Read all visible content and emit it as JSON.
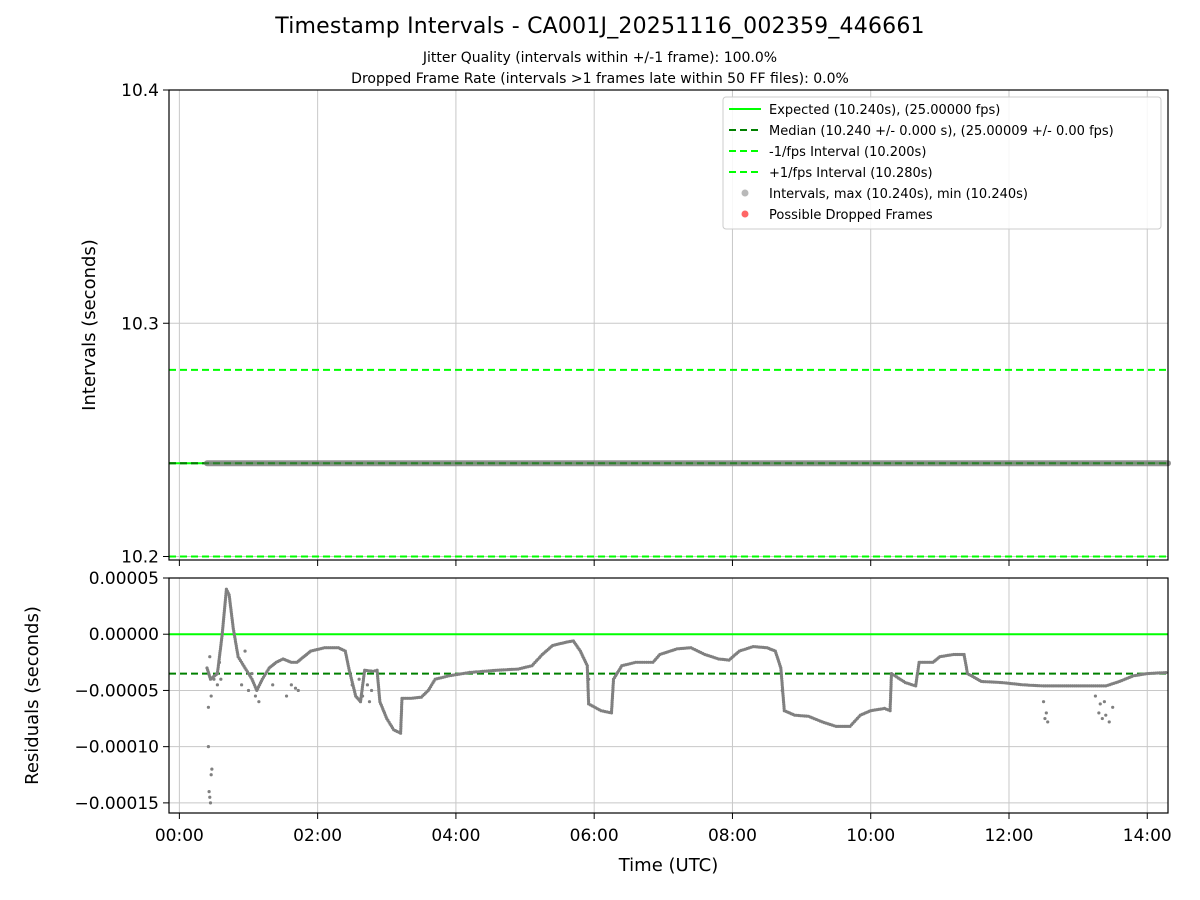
{
  "title": "Timestamp Intervals - CA001J_20251116_002359_446661",
  "subtitle_jitter": "Jitter Quality (intervals within +/-1 frame): 100.0%",
  "subtitle_dropped": "Dropped Frame Rate (intervals >1 frames late within 50 FF files): 0.0%",
  "colors": {
    "expected": "#00ff00",
    "median": "#008000",
    "fps_bounds": "#00ff00",
    "points": "#808080",
    "dropped": "#ff0000",
    "grid": "#c8c8c8"
  },
  "chart_data": [
    {
      "type": "scatter",
      "panel": "intervals",
      "ylabel": "Intervals (seconds)",
      "xlim_hours": [
        -0.15,
        14.3
      ],
      "ylim": [
        10.1985,
        10.4
      ],
      "yticks": [
        10.2,
        10.3,
        10.4
      ],
      "ytick_labels": [
        "10.2",
        "10.3",
        "10.4"
      ],
      "grid": true,
      "legend_position": "top-right",
      "lines": [
        {
          "name": "Expected (10.240s), (25.00000 fps)",
          "y": 10.24,
          "style": "solid"
        },
        {
          "name": "Median (10.240 +/- 0.000 s), (25.00009 +/- 0.00 fps)",
          "y": 10.24,
          "style": "dashed"
        },
        {
          "name": "-1/fps Interval (10.200s)",
          "y": 10.2,
          "style": "dashed"
        },
        {
          "name": "+1/fps Interval (10.280s)",
          "y": 10.28,
          "style": "dashed"
        }
      ],
      "legend_points": [
        {
          "name": "Intervals, max (10.240s), min (10.240s)"
        },
        {
          "name": "Possible Dropped Frames"
        }
      ],
      "interval_series": {
        "x_start_hours": 0.4,
        "x_end_hours": 14.3,
        "y": 10.24
      },
      "dropped_frames": []
    },
    {
      "type": "scatter",
      "panel": "residuals",
      "ylabel": "Residuals (seconds)",
      "xlabel": "Time (UTC)",
      "xlim_hours": [
        -0.15,
        14.3
      ],
      "ylim": [
        -0.000159,
        5e-05
      ],
      "yticks": [
        5e-05,
        0.0,
        -5e-05,
        -0.0001,
        -0.00015
      ],
      "ytick_labels": [
        "0.00005",
        "0.00000",
        "−0.00005",
        "−0.00010",
        "−0.00015"
      ],
      "xticks_hours": [
        0,
        2,
        4,
        6,
        8,
        10,
        12,
        14
      ],
      "xtick_labels": [
        "00:00",
        "02:00",
        "04:00",
        "06:00",
        "08:00",
        "10:00",
        "12:00",
        "14:00"
      ],
      "grid": true,
      "lines": [
        {
          "name": "Expected residual",
          "y": 0.0,
          "style": "solid"
        },
        {
          "name": "Median residual",
          "y": -3.5e-05,
          "style": "dashed"
        }
      ],
      "residual_trend": [
        [
          0.4,
          -3e-05
        ],
        [
          0.45,
          -4e-05
        ],
        [
          0.55,
          -3.5e-05
        ],
        [
          0.62,
          0.0
        ],
        [
          0.68,
          4e-05
        ],
        [
          0.72,
          3.5e-05
        ],
        [
          0.78,
          5e-06
        ],
        [
          0.85,
          -2e-05
        ],
        [
          0.95,
          -3e-05
        ],
        [
          1.05,
          -4e-05
        ],
        [
          1.12,
          -5e-05
        ],
        [
          1.2,
          -4e-05
        ],
        [
          1.3,
          -3e-05
        ],
        [
          1.4,
          -2.5e-05
        ],
        [
          1.5,
          -2.2e-05
        ],
        [
          1.62,
          -2.5e-05
        ],
        [
          1.7,
          -2.5e-05
        ],
        [
          1.8,
          -2e-05
        ],
        [
          1.9,
          -1.5e-05
        ],
        [
          2.1,
          -1.2e-05
        ],
        [
          2.3,
          -1.2e-05
        ],
        [
          2.4,
          -1.5e-05
        ],
        [
          2.45,
          -3e-05
        ],
        [
          2.55,
          -5.5e-05
        ],
        [
          2.62,
          -6e-05
        ],
        [
          2.68,
          -3.2e-05
        ],
        [
          2.8,
          -3.3e-05
        ],
        [
          2.86,
          -3.2e-05
        ],
        [
          2.9,
          -6e-05
        ],
        [
          3.0,
          -7.5e-05
        ],
        [
          3.1,
          -8.5e-05
        ],
        [
          3.2,
          -8.8e-05
        ],
        [
          3.22,
          -5.7e-05
        ],
        [
          3.35,
          -5.7e-05
        ],
        [
          3.5,
          -5.6e-05
        ],
        [
          3.6,
          -5e-05
        ],
        [
          3.7,
          -4e-05
        ],
        [
          3.9,
          -3.7e-05
        ],
        [
          4.2,
          -3.4e-05
        ],
        [
          4.6,
          -3.2e-05
        ],
        [
          4.9,
          -3.1e-05
        ],
        [
          5.1,
          -2.8e-05
        ],
        [
          5.25,
          -1.8e-05
        ],
        [
          5.4,
          -1e-05
        ],
        [
          5.6,
          -7e-06
        ],
        [
          5.7,
          -6e-06
        ],
        [
          5.8,
          -1.5e-05
        ],
        [
          5.9,
          -2.8e-05
        ],
        [
          5.92,
          -6.2e-05
        ],
        [
          6.1,
          -6.8e-05
        ],
        [
          6.25,
          -7e-05
        ],
        [
          6.28,
          -4e-05
        ],
        [
          6.4,
          -2.8e-05
        ],
        [
          6.6,
          -2.5e-05
        ],
        [
          6.85,
          -2.5e-05
        ],
        [
          6.95,
          -1.8e-05
        ],
        [
          7.2,
          -1.3e-05
        ],
        [
          7.4,
          -1.2e-05
        ],
        [
          7.6,
          -1.8e-05
        ],
        [
          7.8,
          -2.2e-05
        ],
        [
          7.95,
          -2.3e-05
        ],
        [
          8.1,
          -1.5e-05
        ],
        [
          8.3,
          -1.1e-05
        ],
        [
          8.5,
          -1.2e-05
        ],
        [
          8.62,
          -1.5e-05
        ],
        [
          8.7,
          -3e-05
        ],
        [
          8.75,
          -6.8e-05
        ],
        [
          8.9,
          -7.2e-05
        ],
        [
          9.1,
          -7.3e-05
        ],
        [
          9.3,
          -7.8e-05
        ],
        [
          9.5,
          -8.2e-05
        ],
        [
          9.7,
          -8.2e-05
        ],
        [
          9.85,
          -7.2e-05
        ],
        [
          10.0,
          -6.8e-05
        ],
        [
          10.2,
          -6.6e-05
        ],
        [
          10.28,
          -6.8e-05
        ],
        [
          10.3,
          -3.5e-05
        ],
        [
          10.5,
          -4.3e-05
        ],
        [
          10.65,
          -4.6e-05
        ],
        [
          10.7,
          -2.5e-05
        ],
        [
          10.8,
          -2.5e-05
        ],
        [
          10.9,
          -2.5e-05
        ],
        [
          11.0,
          -2e-05
        ],
        [
          11.2,
          -1.8e-05
        ],
        [
          11.35,
          -1.8e-05
        ],
        [
          11.4,
          -3.5e-05
        ],
        [
          11.6,
          -4.2e-05
        ],
        [
          11.9,
          -4.3e-05
        ],
        [
          12.2,
          -4.5e-05
        ],
        [
          12.5,
          -4.6e-05
        ],
        [
          12.8,
          -4.6e-05
        ],
        [
          13.1,
          -4.6e-05
        ],
        [
          13.4,
          -4.6e-05
        ],
        [
          13.6,
          -4.2e-05
        ],
        [
          13.8,
          -3.7e-05
        ],
        [
          14.0,
          -3.5e-05
        ],
        [
          14.3,
          -3.4e-05
        ]
      ],
      "residual_outliers": [
        [
          0.42,
          -0.0001
        ],
        [
          0.43,
          -0.00014
        ],
        [
          0.44,
          -0.000145
        ],
        [
          0.45,
          -0.00015
        ],
        [
          0.46,
          -0.000125
        ],
        [
          0.47,
          -0.00012
        ],
        [
          0.42,
          -6.5e-05
        ],
        [
          0.44,
          -2e-05
        ],
        [
          0.46,
          -5.5e-05
        ],
        [
          0.5,
          -4e-05
        ],
        [
          0.55,
          -4.5e-05
        ],
        [
          0.58,
          -2.5e-05
        ],
        [
          0.6,
          -4e-05
        ],
        [
          0.9,
          -4.5e-05
        ],
        [
          0.95,
          -1.5e-05
        ],
        [
          1.0,
          -5e-05
        ],
        [
          1.05,
          -3.5e-05
        ],
        [
          1.1,
          -5.5e-05
        ],
        [
          1.15,
          -6e-05
        ],
        [
          1.35,
          -4.5e-05
        ],
        [
          1.55,
          -5.5e-05
        ],
        [
          1.62,
          -4.5e-05
        ],
        [
          1.68,
          -4.8e-05
        ],
        [
          1.72,
          -5e-05
        ],
        [
          2.5,
          -4.5e-05
        ],
        [
          2.6,
          -4e-05
        ],
        [
          2.65,
          -5.5e-05
        ],
        [
          2.72,
          -4.5e-05
        ],
        [
          2.75,
          -6e-05
        ],
        [
          2.78,
          -5e-05
        ],
        [
          5.92,
          -4e-05
        ],
        [
          8.72,
          -5e-05
        ],
        [
          12.5,
          -6e-05
        ],
        [
          12.52,
          -7.5e-05
        ],
        [
          12.54,
          -7e-05
        ],
        [
          12.56,
          -7.8e-05
        ],
        [
          13.25,
          -5.5e-05
        ],
        [
          13.3,
          -7e-05
        ],
        [
          13.32,
          -6.2e-05
        ],
        [
          13.35,
          -7.5e-05
        ],
        [
          13.38,
          -6e-05
        ],
        [
          13.4,
          -7.2e-05
        ],
        [
          13.45,
          -7.8e-05
        ],
        [
          13.5,
          -6.5e-05
        ]
      ]
    }
  ]
}
